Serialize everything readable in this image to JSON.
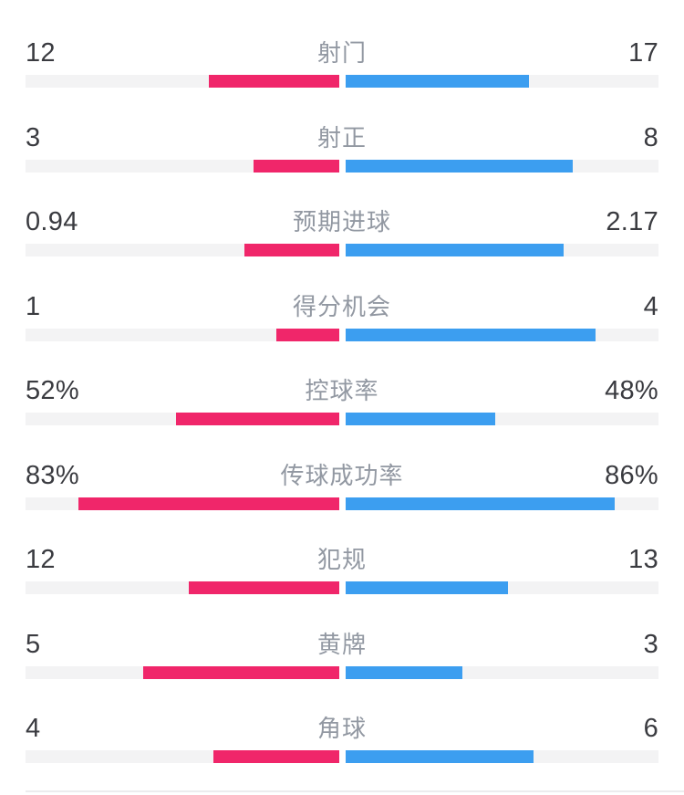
{
  "chart_data": {
    "type": "bar",
    "subtype": "opposed-horizontal-comparison",
    "home_color": "#F0266A",
    "away_color": "#3C9EF0",
    "track_color": "#F3F3F4",
    "value_text_color": "#3A3B40",
    "label_text_color": "#9298A2",
    "categories": [
      "射门",
      "射正",
      "预期进球",
      "得分机会",
      "控球率",
      "传球成功率",
      "犯规",
      "黄牌",
      "角球"
    ],
    "series": [
      {
        "name": "home",
        "values": [
          "12",
          "3",
          "0.94",
          "1",
          "52%",
          "83%",
          "12",
          "5",
          "4"
        ]
      },
      {
        "name": "away",
        "values": [
          "17",
          "8",
          "2.17",
          "4",
          "48%",
          "86%",
          "13",
          "3",
          "6"
        ]
      }
    ],
    "rows": [
      {
        "label": "射门",
        "left": "12",
        "right": "17",
        "left_pct": 41.38,
        "right_pct": 58.62
      },
      {
        "label": "射正",
        "left": "3",
        "right": "8",
        "left_pct": 27.27,
        "right_pct": 72.73
      },
      {
        "label": "预期进球",
        "left": "0.94",
        "right": "2.17",
        "left_pct": 30.23,
        "right_pct": 69.77
      },
      {
        "label": "得分机会",
        "left": "1",
        "right": "4",
        "left_pct": 20,
        "right_pct": 80
      },
      {
        "label": "控球率",
        "left": "52%",
        "right": "48%",
        "left_pct": 52,
        "right_pct": 48
      },
      {
        "label": "传球成功率",
        "left": "83%",
        "right": "86%",
        "left_pct": 83,
        "right_pct": 86
      },
      {
        "label": "犯规",
        "left": "12",
        "right": "13",
        "left_pct": 48,
        "right_pct": 52
      },
      {
        "label": "黄牌",
        "left": "5",
        "right": "3",
        "left_pct": 62.5,
        "right_pct": 37.5
      },
      {
        "label": "角球",
        "left": "4",
        "right": "6",
        "left_pct": 40,
        "right_pct": 60
      }
    ]
  }
}
